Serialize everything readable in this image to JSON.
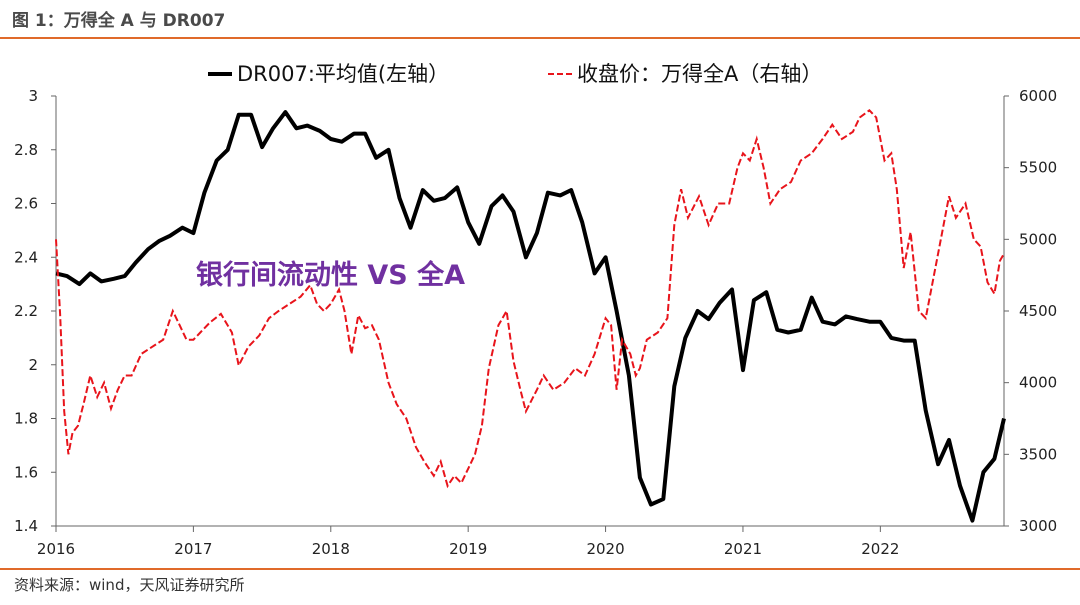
{
  "header": {
    "title": "图 1：万得全 A 与 DR007"
  },
  "footer": {
    "source": "资料来源：wind，天风证券研究所"
  },
  "colors": {
    "accent_rule": "#e06a2a",
    "dr007": "#000000",
    "wind_a": "#e8141b",
    "annotation": "#7030a0"
  },
  "chart_data": {
    "type": "line",
    "title": "",
    "annotation": "银行间流动性 VS 全A",
    "x_ticks": [
      "2016",
      "2017",
      "2018",
      "2019",
      "2020",
      "2021",
      "2022"
    ],
    "x_range": [
      2016.0,
      2022.9
    ],
    "left_axis": {
      "ticks": [
        "1.4",
        "1.6",
        "1.8",
        "2",
        "2.2",
        "2.4",
        "2.6",
        "2.8",
        "3"
      ],
      "range": [
        1.4,
        3.0
      ]
    },
    "right_axis": {
      "ticks": [
        "3000",
        "3500",
        "4000",
        "4500",
        "5000",
        "5500",
        "6000"
      ],
      "range": [
        3000,
        6000
      ]
    },
    "legend_position": "top",
    "series": [
      {
        "name": "DR007:平均值(左轴）",
        "axis": "left",
        "style": "solid",
        "points": [
          [
            2016.0,
            2.34
          ],
          [
            2016.08,
            2.33
          ],
          [
            2016.17,
            2.3
          ],
          [
            2016.25,
            2.34
          ],
          [
            2016.33,
            2.31
          ],
          [
            2016.42,
            2.32
          ],
          [
            2016.5,
            2.33
          ],
          [
            2016.58,
            2.38
          ],
          [
            2016.67,
            2.43
          ],
          [
            2016.75,
            2.46
          ],
          [
            2016.83,
            2.48
          ],
          [
            2016.92,
            2.51
          ],
          [
            2017.0,
            2.49
          ],
          [
            2017.08,
            2.64
          ],
          [
            2017.17,
            2.76
          ],
          [
            2017.25,
            2.8
          ],
          [
            2017.33,
            2.93
          ],
          [
            2017.42,
            2.93
          ],
          [
            2017.5,
            2.81
          ],
          [
            2017.58,
            2.88
          ],
          [
            2017.67,
            2.94
          ],
          [
            2017.75,
            2.88
          ],
          [
            2017.83,
            2.89
          ],
          [
            2017.92,
            2.87
          ],
          [
            2018.0,
            2.84
          ],
          [
            2018.08,
            2.83
          ],
          [
            2018.17,
            2.86
          ],
          [
            2018.25,
            2.86
          ],
          [
            2018.33,
            2.77
          ],
          [
            2018.42,
            2.8
          ],
          [
            2018.5,
            2.62
          ],
          [
            2018.58,
            2.51
          ],
          [
            2018.67,
            2.65
          ],
          [
            2018.75,
            2.61
          ],
          [
            2018.83,
            2.62
          ],
          [
            2018.92,
            2.66
          ],
          [
            2019.0,
            2.53
          ],
          [
            2019.08,
            2.45
          ],
          [
            2019.17,
            2.59
          ],
          [
            2019.25,
            2.63
          ],
          [
            2019.33,
            2.57
          ],
          [
            2019.42,
            2.4
          ],
          [
            2019.5,
            2.49
          ],
          [
            2019.58,
            2.64
          ],
          [
            2019.67,
            2.63
          ],
          [
            2019.75,
            2.65
          ],
          [
            2019.83,
            2.53
          ],
          [
            2019.92,
            2.34
          ],
          [
            2020.0,
            2.4
          ],
          [
            2020.08,
            2.2
          ],
          [
            2020.17,
            1.96
          ],
          [
            2020.25,
            1.58
          ],
          [
            2020.33,
            1.48
          ],
          [
            2020.42,
            1.5
          ],
          [
            2020.5,
            1.92
          ],
          [
            2020.58,
            2.1
          ],
          [
            2020.67,
            2.2
          ],
          [
            2020.75,
            2.17
          ],
          [
            2020.83,
            2.23
          ],
          [
            2020.92,
            2.28
          ],
          [
            2021.0,
            1.98
          ],
          [
            2021.08,
            2.24
          ],
          [
            2021.17,
            2.27
          ],
          [
            2021.25,
            2.13
          ],
          [
            2021.33,
            2.12
          ],
          [
            2021.42,
            2.13
          ],
          [
            2021.5,
            2.25
          ],
          [
            2021.58,
            2.16
          ],
          [
            2021.67,
            2.15
          ],
          [
            2021.75,
            2.18
          ],
          [
            2021.83,
            2.17
          ],
          [
            2021.92,
            2.16
          ],
          [
            2022.0,
            2.16
          ],
          [
            2022.08,
            2.1
          ],
          [
            2022.17,
            2.09
          ],
          [
            2022.25,
            2.09
          ],
          [
            2022.33,
            1.83
          ],
          [
            2022.42,
            1.63
          ],
          [
            2022.5,
            1.72
          ],
          [
            2022.58,
            1.55
          ],
          [
            2022.67,
            1.42
          ],
          [
            2022.75,
            1.6
          ],
          [
            2022.83,
            1.65
          ],
          [
            2022.9,
            1.8
          ]
        ]
      },
      {
        "name": "收盘价：万得全A（右轴）",
        "axis": "right",
        "style": "dashed",
        "points": [
          [
            2016.0,
            5000
          ],
          [
            2016.03,
            4480
          ],
          [
            2016.06,
            3800
          ],
          [
            2016.09,
            3500
          ],
          [
            2016.12,
            3650
          ],
          [
            2016.16,
            3700
          ],
          [
            2016.2,
            3850
          ],
          [
            2016.25,
            4050
          ],
          [
            2016.3,
            3900
          ],
          [
            2016.35,
            4000
          ],
          [
            2016.4,
            3820
          ],
          [
            2016.45,
            3950
          ],
          [
            2016.5,
            4050
          ],
          [
            2016.55,
            4050
          ],
          [
            2016.62,
            4200
          ],
          [
            2016.7,
            4250
          ],
          [
            2016.78,
            4300
          ],
          [
            2016.85,
            4500
          ],
          [
            2016.9,
            4400
          ],
          [
            2016.95,
            4300
          ],
          [
            2017.0,
            4300
          ],
          [
            2017.05,
            4350
          ],
          [
            2017.12,
            4420
          ],
          [
            2017.2,
            4480
          ],
          [
            2017.28,
            4350
          ],
          [
            2017.33,
            4120
          ],
          [
            2017.4,
            4250
          ],
          [
            2017.48,
            4330
          ],
          [
            2017.55,
            4450
          ],
          [
            2017.62,
            4500
          ],
          [
            2017.7,
            4550
          ],
          [
            2017.78,
            4600
          ],
          [
            2017.85,
            4680
          ],
          [
            2017.9,
            4550
          ],
          [
            2017.95,
            4500
          ],
          [
            2018.0,
            4550
          ],
          [
            2018.06,
            4650
          ],
          [
            2018.1,
            4500
          ],
          [
            2018.15,
            4200
          ],
          [
            2018.2,
            4470
          ],
          [
            2018.25,
            4380
          ],
          [
            2018.3,
            4400
          ],
          [
            2018.35,
            4300
          ],
          [
            2018.42,
            4000
          ],
          [
            2018.48,
            3850
          ],
          [
            2018.55,
            3750
          ],
          [
            2018.62,
            3550
          ],
          [
            2018.68,
            3450
          ],
          [
            2018.75,
            3350
          ],
          [
            2018.8,
            3450
          ],
          [
            2018.85,
            3280
          ],
          [
            2018.9,
            3350
          ],
          [
            2018.95,
            3300
          ],
          [
            2019.0,
            3400
          ],
          [
            2019.05,
            3500
          ],
          [
            2019.1,
            3700
          ],
          [
            2019.15,
            4100
          ],
          [
            2019.22,
            4400
          ],
          [
            2019.28,
            4500
          ],
          [
            2019.33,
            4150
          ],
          [
            2019.38,
            3950
          ],
          [
            2019.42,
            3800
          ],
          [
            2019.5,
            3950
          ],
          [
            2019.55,
            4050
          ],
          [
            2019.62,
            3950
          ],
          [
            2019.7,
            4000
          ],
          [
            2019.78,
            4100
          ],
          [
            2019.85,
            4050
          ],
          [
            2019.92,
            4200
          ],
          [
            2020.0,
            4450
          ],
          [
            2020.04,
            4400
          ],
          [
            2020.08,
            3950
          ],
          [
            2020.12,
            4300
          ],
          [
            2020.18,
            4200
          ],
          [
            2020.22,
            4050
          ],
          [
            2020.25,
            4100
          ],
          [
            2020.3,
            4300
          ],
          [
            2020.38,
            4350
          ],
          [
            2020.45,
            4450
          ],
          [
            2020.5,
            5100
          ],
          [
            2020.55,
            5350
          ],
          [
            2020.6,
            5150
          ],
          [
            2020.68,
            5300
          ],
          [
            2020.75,
            5100
          ],
          [
            2020.82,
            5250
          ],
          [
            2020.9,
            5250
          ],
          [
            2020.96,
            5500
          ],
          [
            2021.0,
            5600
          ],
          [
            2021.05,
            5550
          ],
          [
            2021.1,
            5700
          ],
          [
            2021.15,
            5500
          ],
          [
            2021.2,
            5250
          ],
          [
            2021.27,
            5350
          ],
          [
            2021.35,
            5400
          ],
          [
            2021.42,
            5550
          ],
          [
            2021.5,
            5600
          ],
          [
            2021.58,
            5700
          ],
          [
            2021.65,
            5800
          ],
          [
            2021.72,
            5700
          ],
          [
            2021.8,
            5750
          ],
          [
            2021.85,
            5850
          ],
          [
            2021.92,
            5900
          ],
          [
            2021.97,
            5850
          ],
          [
            2022.03,
            5550
          ],
          [
            2022.08,
            5600
          ],
          [
            2022.12,
            5350
          ],
          [
            2022.17,
            4800
          ],
          [
            2022.22,
            5050
          ],
          [
            2022.28,
            4500
          ],
          [
            2022.33,
            4450
          ],
          [
            2022.38,
            4700
          ],
          [
            2022.45,
            5050
          ],
          [
            2022.5,
            5300
          ],
          [
            2022.55,
            5150
          ],
          [
            2022.62,
            5250
          ],
          [
            2022.68,
            5000
          ],
          [
            2022.73,
            4950
          ],
          [
            2022.78,
            4700
          ],
          [
            2022.83,
            4620
          ],
          [
            2022.87,
            4850
          ],
          [
            2022.9,
            4900
          ]
        ]
      }
    ]
  }
}
